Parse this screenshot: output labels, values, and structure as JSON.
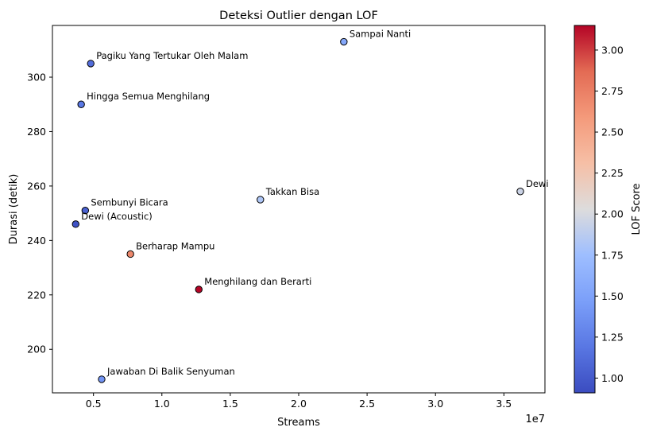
{
  "chart_data": {
    "type": "scatter",
    "title": "Deteksi Outlier dengan LOF",
    "xlabel": "Streams",
    "ylabel": "Durasi (detik)",
    "x_offset_label": "1e7",
    "xlim": [
      2000000.0,
      38000000.0
    ],
    "ylim": [
      184,
      319
    ],
    "x_ticks": [
      5000000.0,
      10000000.0,
      15000000.0,
      20000000.0,
      25000000.0,
      30000000.0,
      35000000.0
    ],
    "x_tick_labels": [
      "0.5",
      "1.0",
      "1.5",
      "2.0",
      "2.5",
      "3.0",
      "3.5"
    ],
    "y_ticks": [
      200,
      220,
      240,
      260,
      280,
      300
    ],
    "y_tick_labels": [
      "200",
      "220",
      "240",
      "260",
      "280",
      "300"
    ],
    "grid": false,
    "colorbar": {
      "label": "LOF Score",
      "colormap": "coolwarm",
      "range": [
        0.91,
        3.15
      ],
      "ticks": [
        1.0,
        1.25,
        1.5,
        1.75,
        2.0,
        2.25,
        2.5,
        2.75,
        3.0
      ],
      "tick_labels": [
        "1.00",
        "1.25",
        "1.50",
        "1.75",
        "2.00",
        "2.25",
        "2.50",
        "2.75",
        "3.00"
      ]
    },
    "points": [
      {
        "label": "Sampai Nanti",
        "x": 23300000,
        "y": 313,
        "score": 1.55
      },
      {
        "label": "Pagiku Yang Tertukar Oleh Malam",
        "x": 4800000,
        "y": 305,
        "score": 1.12
      },
      {
        "label": "Hingga Semua Menghilang",
        "x": 4100000,
        "y": 290,
        "score": 1.2
      },
      {
        "label": "Dewi",
        "x": 36200000,
        "y": 258,
        "score": 1.95
      },
      {
        "label": "Takkan Bisa",
        "x": 17200000,
        "y": 255,
        "score": 1.82
      },
      {
        "label": "Sembunyi Bicara",
        "x": 4400000,
        "y": 251,
        "score": 1.05
      },
      {
        "label": "Dewi (Acoustic)",
        "x": 3700000,
        "y": 246,
        "score": 0.95
      },
      {
        "label": "Berharap Mampu",
        "x": 7700000,
        "y": 235,
        "score": 2.7
      },
      {
        "label": "Menghilang dan Berarti",
        "x": 12700000,
        "y": 222,
        "score": 3.15
      },
      {
        "label": "Jawaban Di Balik Senyuman",
        "x": 5600000,
        "y": 189,
        "score": 1.4
      }
    ]
  }
}
